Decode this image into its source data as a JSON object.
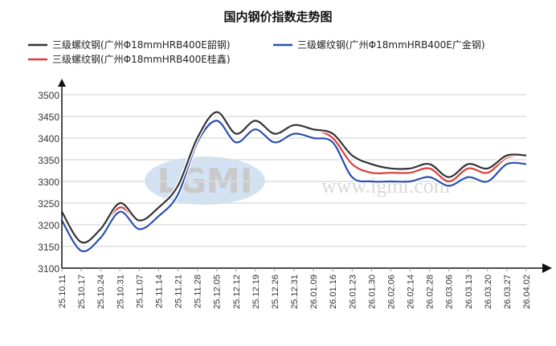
{
  "chart_data": {
    "type": "line",
    "title": "国内钢价指数走势图",
    "xlabel": "",
    "ylabel": "",
    "ylim": [
      3100,
      3500
    ],
    "yticks": [
      3100,
      3150,
      3200,
      3250,
      3300,
      3350,
      3400,
      3450,
      3500
    ],
    "grid": true,
    "legend_position": "top",
    "categories": [
      "25.10.11",
      "25.10.17",
      "25.10.24",
      "25.10.31",
      "25.11.07",
      "25.11.14",
      "25.11.21",
      "25.11.28",
      "25.12.05",
      "25.12.12",
      "25.12.19",
      "25.12.26",
      "25.12.31",
      "26.01.09",
      "26.01.16",
      "26.01.23",
      "26.01.30",
      "26.02.06",
      "26.02.14",
      "26.02.28",
      "26.03.06",
      "26.03.13",
      "26.03.20",
      "26.03.27",
      "26.04.02"
    ],
    "series": [
      {
        "name": "三级螺纹钢(广州Φ18mmHRB400E韶钢)",
        "color": "#333333",
        "values": [
          3230,
          3160,
          3190,
          3250,
          3210,
          3240,
          3290,
          3400,
          3460,
          3410,
          3440,
          3410,
          3430,
          3420,
          3410,
          3360,
          3340,
          3330,
          3330,
          3340,
          3310,
          3340,
          3330,
          3360,
          3360
        ]
      },
      {
        "name": "三级螺纹钢(广州Φ18mmHRB400E桂鑫)",
        "color": "#d9403a",
        "values": [
          3230,
          3160,
          3190,
          3240,
          3210,
          3240,
          3290,
          3400,
          3460,
          3410,
          3440,
          3410,
          3430,
          3420,
          3400,
          3340,
          3320,
          3320,
          3320,
          3330,
          3300,
          3330,
          3320,
          3355,
          3360
        ]
      },
      {
        "name": "三级螺纹钢(广州Φ18mmHRB400E广金钢)",
        "color": "#2a4fb0",
        "values": [
          3210,
          3140,
          3170,
          3230,
          3190,
          3220,
          3270,
          3390,
          3440,
          3390,
          3420,
          3390,
          3410,
          3400,
          3390,
          3310,
          3300,
          3300,
          3300,
          3310,
          3290,
          3310,
          3300,
          3340,
          3340
        ]
      }
    ],
    "watermark": {
      "logo": "LGMI",
      "url": "www.lgmi.com"
    }
  }
}
